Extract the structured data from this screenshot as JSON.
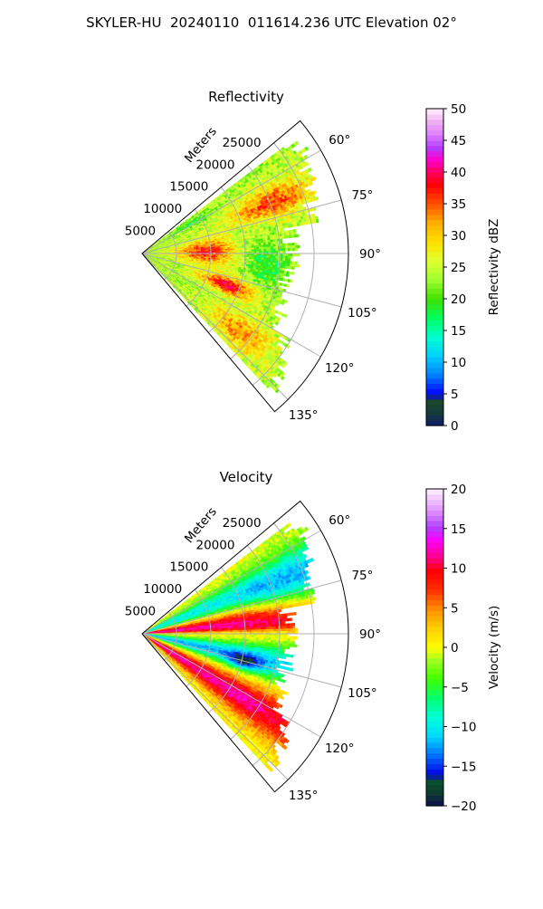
{
  "title": "SKYLER-HU  20240110  011614.236 UTC Elevation 02°",
  "chart_data": [
    {
      "type": "heatmap",
      "projection": "polar-sector",
      "title": "Reflectivity",
      "radial_axis_label": "Meters",
      "radial_ticks": [
        5000,
        10000,
        15000,
        20000,
        25000
      ],
      "radial_tick_labels": [
        "5000",
        "10000",
        "15000",
        "20000",
        "25000"
      ],
      "rlim": [
        0,
        30000
      ],
      "azimuth_range_deg": [
        50,
        140
      ],
      "azimuth_ticks": [
        60,
        75,
        90,
        105,
        120,
        135
      ],
      "azimuth_tick_labels": [
        "60°",
        "75°",
        "90°",
        "105°",
        "120°",
        "135°"
      ],
      "grid": true,
      "colorbar": {
        "label": "Reflectivity dBZ",
        "range": [
          0,
          50
        ],
        "ticks": [
          0,
          5,
          10,
          15,
          20,
          25,
          30,
          35,
          40,
          45,
          50
        ],
        "tick_labels": [
          "0",
          "5",
          "10",
          "15",
          "20",
          "25",
          "30",
          "35",
          "40",
          "45",
          "50"
        ],
        "colormap": "pyart_HomeyerRainbow"
      },
      "data_summary": {
        "cells": [
          {
            "az": 85,
            "r": 7000,
            "value": 45
          },
          {
            "az": 80,
            "r": 12000,
            "value": 40
          },
          {
            "az": 100,
            "r": 10000,
            "value": 42
          },
          {
            "az": 110,
            "r": 13000,
            "value": 43
          },
          {
            "az": 70,
            "r": 20000,
            "value": 37
          },
          {
            "az": 130,
            "r": 18000,
            "value": 36
          },
          {
            "az": 62,
            "r": 25000,
            "value": 33
          },
          {
            "az": 95,
            "r": 16000,
            "value": 28
          },
          {
            "az": 120,
            "r": 22000,
            "value": 24
          },
          {
            "az": 75,
            "r": 24000,
            "value": 22
          }
        ]
      }
    },
    {
      "type": "heatmap",
      "projection": "polar-sector",
      "title": "Velocity",
      "radial_axis_label": "Meters",
      "radial_ticks": [
        5000,
        10000,
        15000,
        20000,
        25000
      ],
      "radial_tick_labels": [
        "5000",
        "10000",
        "15000",
        "20000",
        "25000"
      ],
      "rlim": [
        0,
        30000
      ],
      "azimuth_range_deg": [
        50,
        140
      ],
      "azimuth_ticks": [
        60,
        75,
        90,
        105,
        120,
        135
      ],
      "azimuth_tick_labels": [
        "60°",
        "75°",
        "90°",
        "105°",
        "120°",
        "135°"
      ],
      "grid": true,
      "colorbar": {
        "label": "Velocity (m/s)",
        "range": [
          -20,
          20
        ],
        "ticks": [
          -20,
          -15,
          -10,
          -5,
          0,
          5,
          10,
          15,
          20
        ],
        "tick_labels": [
          "−20",
          "−15",
          "−10",
          "−5",
          "0",
          "5",
          "10",
          "15",
          "20"
        ],
        "colormap": "pyart_BuDRd18"
      },
      "data_summary": {
        "cells": [
          {
            "az": 90,
            "r": 8000,
            "value": 1
          },
          {
            "az": 82,
            "r": 10000,
            "value": 12
          },
          {
            "az": 75,
            "r": 18000,
            "value": -8
          },
          {
            "az": 65,
            "r": 22000,
            "value": -3
          },
          {
            "az": 100,
            "r": 12000,
            "value": -12
          },
          {
            "az": 108,
            "r": 16000,
            "value": -11
          },
          {
            "az": 120,
            "r": 16000,
            "value": 11
          },
          {
            "az": 130,
            "r": 20000,
            "value": 4
          },
          {
            "az": 88,
            "r": 18000,
            "value": 6
          },
          {
            "az": 135,
            "r": 24000,
            "value": 0
          }
        ]
      }
    }
  ]
}
